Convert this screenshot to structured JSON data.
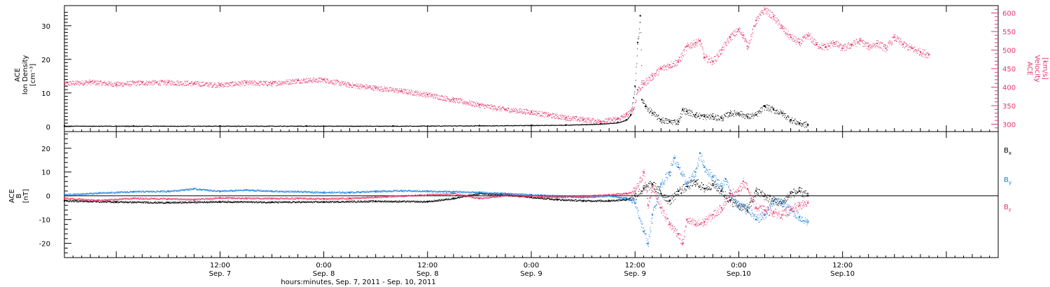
{
  "colors": {
    "axis": "#000000",
    "black": "#000000",
    "pink": "#e8336a",
    "blue": "#1a7fe0"
  },
  "x_axis": {
    "label": "hours:minutes, Sep.  7, 2011 - Sep. 10, 2011",
    "range_hours": [
      -18,
      90
    ],
    "ticks": [
      {
        "t": 0,
        "time": "12:00",
        "date": "Sep. 7"
      },
      {
        "t": 12,
        "time": "0:00",
        "date": "Sep. 8"
      },
      {
        "t": 24,
        "time": "12:00",
        "date": "Sep. 8"
      },
      {
        "t": 36,
        "time": "0:00",
        "date": "Sep. 9"
      },
      {
        "t": 48,
        "time": "12:00",
        "date": "Sep. 9"
      },
      {
        "t": 60,
        "time": "0:00",
        "date": "Sep.10"
      },
      {
        "t": 72,
        "time": "12:00",
        "date": "Sep.10"
      }
    ]
  },
  "chart_data": [
    {
      "type": "scatter",
      "ylabel_left": [
        "ACE",
        "Ion Density",
        "[cm⁻³]"
      ],
      "ylabel_right": [
        "ACE",
        "Velocity",
        "[km/s]"
      ],
      "ylim_left": [
        -1.5,
        36
      ],
      "ylim_right": [
        280,
        620
      ],
      "yticks_left": [
        0,
        10,
        20,
        30
      ],
      "yticks_right": [
        300,
        350,
        400,
        450,
        500,
        550,
        600
      ],
      "series": [
        {
          "axis": "left",
          "color": "black",
          "points": [
            [
              -18,
              0.2
            ],
            [
              -10,
              0.2
            ],
            [
              0,
              0.2
            ],
            [
              10,
              0.2
            ],
            [
              20,
              0.2
            ],
            [
              30,
              0.3
            ],
            [
              36,
              0.4
            ],
            [
              40,
              0.5
            ],
            [
              44,
              0.8
            ],
            [
              46,
              1.2
            ],
            [
              47,
              2
            ],
            [
              47.5,
              3.5
            ],
            [
              48,
              12
            ],
            [
              48.3,
              25
            ],
            [
              48.6,
              33
            ],
            [
              48.8,
              8
            ],
            [
              49.2,
              6
            ],
            [
              50,
              4
            ],
            [
              51,
              2
            ],
            [
              52,
              1.5
            ],
            [
              53,
              1.5
            ],
            [
              53.5,
              5
            ],
            [
              54,
              4.5
            ],
            [
              55,
              3.5
            ],
            [
              56,
              3
            ],
            [
              57,
              3
            ],
            [
              58,
              2.5
            ],
            [
              59,
              4
            ],
            [
              60,
              4
            ],
            [
              61,
              3
            ],
            [
              62,
              3.5
            ],
            [
              63,
              6
            ],
            [
              64,
              5
            ],
            [
              65,
              4
            ],
            [
              66,
              2
            ],
            [
              67,
              1
            ],
            [
              68,
              0.5
            ]
          ]
        },
        {
          "axis": "right",
          "color": "pink",
          "points": [
            [
              -18,
              410
            ],
            [
              -15,
              414
            ],
            [
              -12,
              408
            ],
            [
              -9,
              412
            ],
            [
              -6,
              413
            ],
            [
              -3,
              410
            ],
            [
              0,
              406
            ],
            [
              3,
              412
            ],
            [
              6,
              410
            ],
            [
              9,
              418
            ],
            [
              12,
              420
            ],
            [
              15,
              406
            ],
            [
              18,
              398
            ],
            [
              21,
              390
            ],
            [
              24,
              380
            ],
            [
              27,
              366
            ],
            [
              30,
              352
            ],
            [
              33,
              340
            ],
            [
              36,
              333
            ],
            [
              38,
              325
            ],
            [
              40,
              318
            ],
            [
              42,
              313
            ],
            [
              44,
              308
            ],
            [
              46,
              314
            ],
            [
              47,
              326
            ],
            [
              47.8,
              340
            ],
            [
              48.3,
              393
            ],
            [
              49,
              410
            ],
            [
              50,
              430
            ],
            [
              51,
              450
            ],
            [
              52,
              460
            ],
            [
              53,
              470
            ],
            [
              54,
              510
            ],
            [
              55,
              520
            ],
            [
              55.5,
              525
            ],
            [
              56,
              480
            ],
            [
              57,
              470
            ],
            [
              58,
              500
            ],
            [
              59,
              535
            ],
            [
              60,
              555
            ],
            [
              60.5,
              540
            ],
            [
              61,
              510
            ],
            [
              62,
              580
            ],
            [
              63,
              610
            ],
            [
              64,
              590
            ],
            [
              65,
              560
            ],
            [
              66,
              535
            ],
            [
              67,
              520
            ],
            [
              68,
              540
            ],
            [
              69,
              515
            ],
            [
              70,
              508
            ],
            [
              71,
              520
            ],
            [
              72,
              505
            ],
            [
              73,
              515
            ],
            [
              74,
              525
            ],
            [
              75,
              510
            ],
            [
              76,
              518
            ],
            [
              77,
              505
            ],
            [
              78,
              535
            ],
            [
              79,
              515
            ],
            [
              80,
              505
            ],
            [
              81,
              495
            ],
            [
              82,
              488
            ]
          ]
        }
      ]
    },
    {
      "type": "scatter",
      "ylabel_left": [
        "ACE",
        "B",
        "[nT]"
      ],
      "ylim_left": [
        -26,
        27
      ],
      "yticks_left": [
        -20,
        -10,
        0,
        10,
        20
      ],
      "legend": [
        "Bx",
        "By",
        "Bz"
      ],
      "legend_position": "right",
      "series": [
        {
          "name": "Bx",
          "color": "black",
          "points": [
            [
              -18,
              -2
            ],
            [
              -12,
              -2.5
            ],
            [
              -6,
              -2.8
            ],
            [
              0,
              -2.4
            ],
            [
              6,
              -2.6
            ],
            [
              12,
              -2.5
            ],
            [
              18,
              -2.2
            ],
            [
              24,
              -2.4
            ],
            [
              27,
              -1
            ],
            [
              30,
              1
            ],
            [
              33,
              0.5
            ],
            [
              36,
              -0.5
            ],
            [
              39,
              -1.5
            ],
            [
              42,
              -2
            ],
            [
              45,
              -2
            ],
            [
              47,
              -1.5
            ],
            [
              48,
              0
            ],
            [
              49,
              3
            ],
            [
              50,
              5
            ],
            [
              51,
              1
            ],
            [
              52,
              -2
            ],
            [
              53,
              2
            ],
            [
              54,
              4
            ],
            [
              55,
              6
            ],
            [
              56,
              3
            ],
            [
              57,
              5
            ],
            [
              58,
              2
            ],
            [
              59,
              -2
            ],
            [
              60,
              -4
            ],
            [
              61,
              -6
            ],
            [
              62,
              2
            ],
            [
              63,
              0
            ],
            [
              64,
              -2
            ],
            [
              65,
              -3
            ],
            [
              66,
              1
            ],
            [
              67,
              2
            ],
            [
              68,
              0
            ]
          ]
        },
        {
          "name": "By",
          "color": "blue",
          "points": [
            [
              -18,
              0.5
            ],
            [
              -14,
              1.2
            ],
            [
              -10,
              1.8
            ],
            [
              -6,
              2
            ],
            [
              -3,
              3
            ],
            [
              0,
              2
            ],
            [
              3,
              2.5
            ],
            [
              6,
              2
            ],
            [
              9,
              1.8
            ],
            [
              12,
              1.5
            ],
            [
              15,
              1.5
            ],
            [
              18,
              2
            ],
            [
              21,
              2.2
            ],
            [
              24,
              2
            ],
            [
              27,
              1.8
            ],
            [
              30,
              1.5
            ],
            [
              33,
              1
            ],
            [
              36,
              0.5
            ],
            [
              39,
              0
            ],
            [
              42,
              -0.5
            ],
            [
              45,
              0
            ],
            [
              47,
              -1
            ],
            [
              48,
              -3
            ],
            [
              49,
              -15
            ],
            [
              49.5,
              -20
            ],
            [
              50,
              -8
            ],
            [
              51,
              5
            ],
            [
              52,
              10
            ],
            [
              52.5,
              16
            ],
            [
              53,
              12
            ],
            [
              54,
              5
            ],
            [
              55,
              10
            ],
            [
              55.5,
              18
            ],
            [
              56,
              12
            ],
            [
              57,
              8
            ],
            [
              58,
              4
            ],
            [
              58.5,
              7
            ],
            [
              59,
              1
            ],
            [
              60,
              -4
            ],
            [
              61,
              -5
            ],
            [
              62,
              -10
            ],
            [
              63,
              -8
            ],
            [
              64,
              -2
            ],
            [
              65,
              -3
            ],
            [
              66,
              -6
            ],
            [
              67,
              -9
            ],
            [
              68,
              -11
            ]
          ]
        },
        {
          "name": "Bz",
          "color": "pink",
          "points": [
            [
              -18,
              -1
            ],
            [
              -14,
              -1.8
            ],
            [
              -10,
              -1
            ],
            [
              -6,
              -1.2
            ],
            [
              -3,
              -1.5
            ],
            [
              0,
              -0.8
            ],
            [
              3,
              -1
            ],
            [
              6,
              -1
            ],
            [
              9,
              -1
            ],
            [
              12,
              -1.2
            ],
            [
              15,
              -1
            ],
            [
              18,
              -0.5
            ],
            [
              21,
              0
            ],
            [
              24,
              0.5
            ],
            [
              27,
              1
            ],
            [
              30,
              -1
            ],
            [
              33,
              0.2
            ],
            [
              36,
              0
            ],
            [
              39,
              -0.5
            ],
            [
              42,
              0
            ],
            [
              45,
              0.5
            ],
            [
              47,
              1
            ],
            [
              48,
              2
            ],
            [
              49,
              10
            ],
            [
              49.5,
              -4
            ],
            [
              50,
              4
            ],
            [
              51,
              -5
            ],
            [
              52,
              -12
            ],
            [
              53,
              -16
            ],
            [
              53.5,
              -20
            ],
            [
              54,
              -10
            ],
            [
              55,
              -12
            ],
            [
              56,
              -11
            ],
            [
              57,
              -8
            ],
            [
              58,
              -5
            ],
            [
              59,
              1
            ],
            [
              60,
              2
            ],
            [
              60.5,
              6
            ],
            [
              61,
              3
            ],
            [
              62,
              -5
            ],
            [
              63,
              -6
            ],
            [
              64,
              -7
            ],
            [
              65,
              -8
            ],
            [
              66,
              -6
            ],
            [
              67,
              -4
            ],
            [
              68,
              -3
            ]
          ]
        }
      ]
    }
  ]
}
